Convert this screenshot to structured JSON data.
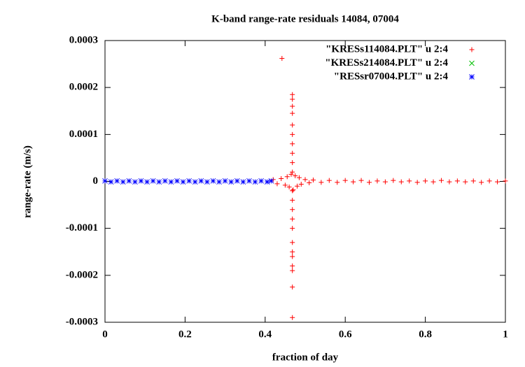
{
  "chart_data": {
    "type": "scatter",
    "title": "K-band range-rate residuals 14084, 07004",
    "x_label": "fraction of day",
    "y_label": "range-rate (m/s)",
    "xlim": [
      0,
      1
    ],
    "ylim": [
      -0.0003,
      0.0003
    ],
    "xticks": [
      0,
      0.2,
      0.4,
      0.6,
      0.8,
      1
    ],
    "yticks": [
      -0.0003,
      -0.0002,
      -0.0001,
      0,
      0.0001,
      0.0002,
      0.0003
    ],
    "legend": "top-right",
    "series": [
      {
        "name": "\"KRESs114084.PLT\" u 2:4",
        "color": "#ff0000",
        "marker": "plus",
        "x": [
          0.42,
          0.43,
          0.44,
          0.45,
          0.455,
          0.46,
          0.465,
          0.47,
          0.475,
          0.48,
          0.485,
          0.49,
          0.5,
          0.51,
          0.52,
          0.54,
          0.56,
          0.58,
          0.6,
          0.62,
          0.64,
          0.66,
          0.68,
          0.7,
          0.72,
          0.74,
          0.76,
          0.78,
          0.8,
          0.82,
          0.84,
          0.86,
          0.88,
          0.9,
          0.92,
          0.94,
          0.96,
          0.98,
          1.0,
          0.442,
          0.468,
          0.468,
          0.468,
          0.468,
          0.468,
          0.468,
          0.468,
          0.468,
          0.468,
          0.468,
          0.468,
          0.468,
          0.468,
          0.468,
          0.468,
          0.468,
          0.468,
          0.468,
          0.468,
          0.468,
          0.468,
          0.468
        ],
        "values": [
          4e-06,
          -5e-06,
          6e-06,
          -8e-06,
          1e-05,
          -1.2e-05,
          1.5e-05,
          -1.8e-05,
          1.2e-05,
          -1e-05,
          8e-06,
          -6e-06,
          4e-06,
          -3e-06,
          3e-06,
          -2e-06,
          2e-06,
          -2e-06,
          2e-06,
          -1e-06,
          2e-06,
          -2e-06,
          1e-06,
          -1e-06,
          2e-06,
          -1e-06,
          1e-06,
          -2e-06,
          1e-06,
          -1e-06,
          2e-06,
          -1e-06,
          1e-06,
          -1e-06,
          1e-06,
          -2e-06,
          1e-06,
          -1e-06,
          1e-06,
          0.000262,
          0.000185,
          0.000175,
          0.00016,
          0.000145,
          0.00012,
          0.0001,
          8e-05,
          6e-05,
          4e-05,
          2e-05,
          -2e-05,
          -4e-05,
          -6e-05,
          -8e-05,
          -0.0001,
          -0.00013,
          -0.00015,
          -0.00016,
          -0.00018,
          -0.00019,
          -0.000225,
          -0.00029
        ]
      },
      {
        "name": "\"KRESs214084.PLT\" u 2:4",
        "color": "#00c000",
        "marker": "cross",
        "x": [],
        "values": []
      },
      {
        "name": "\"RESsr07004.PLT\" u 2:4",
        "color": "#0000ff",
        "marker": "star",
        "x": [
          0,
          0.015,
          0.03,
          0.045,
          0.06,
          0.075,
          0.09,
          0.105,
          0.12,
          0.135,
          0.15,
          0.165,
          0.18,
          0.195,
          0.21,
          0.225,
          0.24,
          0.255,
          0.27,
          0.285,
          0.3,
          0.315,
          0.33,
          0.345,
          0.36,
          0.375,
          0.39,
          0.405,
          0.415
        ],
        "values": [
          1e-06,
          -1e-06,
          1e-06,
          -1e-06,
          1e-06,
          -1e-06,
          1e-06,
          -1e-06,
          1e-06,
          -1e-06,
          1e-06,
          -1e-06,
          1e-06,
          -1e-06,
          1e-06,
          -1e-06,
          1e-06,
          -1e-06,
          1e-06,
          -1e-06,
          1e-06,
          -1e-06,
          1e-06,
          -1e-06,
          1e-06,
          -1e-06,
          1e-06,
          -1e-06,
          1e-06
        ]
      }
    ]
  }
}
